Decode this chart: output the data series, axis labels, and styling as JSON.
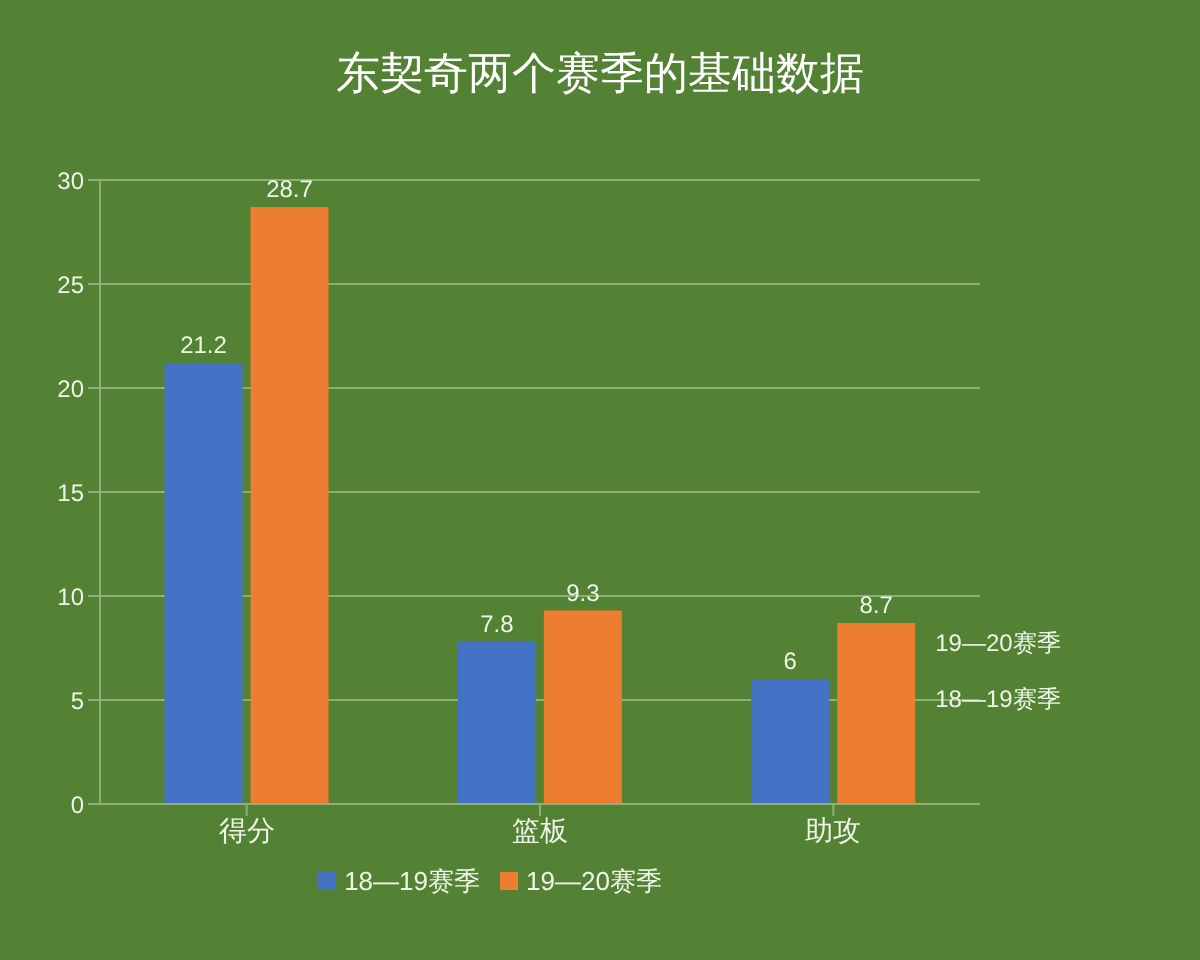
{
  "chart_data": {
    "type": "bar",
    "title": "东契奇两个赛季的基础数据",
    "categories": [
      "得分",
      "篮板",
      "助攻"
    ],
    "series": [
      {
        "name": "18—19赛季",
        "color": "#4472c4",
        "values": [
          21.2,
          7.8,
          6
        ]
      },
      {
        "name": "19—20赛季",
        "color": "#ed7d31",
        "values": [
          28.7,
          9.3,
          8.7
        ]
      }
    ],
    "ylim": [
      0,
      30
    ],
    "yticks": [
      0,
      5,
      10,
      15,
      20,
      25,
      30
    ],
    "grid": "y",
    "legend": "bottom",
    "data_labels": true
  }
}
